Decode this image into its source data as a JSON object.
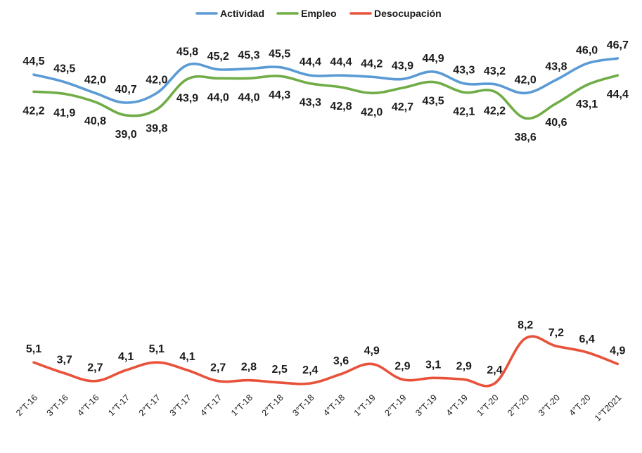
{
  "chart_data": {
    "type": "line",
    "title": "",
    "xlabel": "",
    "ylabel": "",
    "legend_position": "top-center",
    "grid": false,
    "categories": [
      "2°T-16",
      "3°T-16",
      "4°T-16",
      "1°T-17",
      "2°T-17",
      "3°T-17",
      "4°T-17",
      "1°T-18",
      "2°T-18",
      "3°T-18",
      "4°T-18",
      "1°T-19",
      "2°T-19",
      "3°T-19",
      "4°T-19",
      "1°T-20",
      "2°T-20",
      "3°T-20",
      "4°T-20",
      "1°T2021"
    ],
    "series": [
      {
        "name": "Actividad",
        "color": "#5B9BD5",
        "values": [
          44.5,
          43.5,
          42.0,
          40.7,
          42.0,
          45.8,
          45.2,
          45.3,
          45.5,
          44.4,
          44.4,
          44.2,
          43.9,
          44.9,
          43.3,
          43.2,
          42.0,
          43.8,
          46.0,
          46.7
        ],
        "labels": [
          "44,5",
          "43,5",
          "42,0",
          "40,7",
          "42,0",
          "45,8",
          "45,2",
          "45,3",
          "45,5",
          "44,4",
          "44,4",
          "44,2",
          "43,9",
          "44,9",
          "43,3",
          "43,2",
          "42,0",
          "43,8",
          "46,0",
          "46,7"
        ]
      },
      {
        "name": "Empleo",
        "color": "#70AD47",
        "values": [
          42.2,
          41.9,
          40.8,
          39.0,
          39.8,
          43.9,
          44.0,
          44.0,
          44.3,
          43.3,
          42.8,
          42.0,
          42.7,
          43.5,
          42.1,
          42.2,
          38.6,
          40.6,
          43.1,
          44.4
        ],
        "labels": [
          "42,2",
          "41,9",
          "40,8",
          "39,0",
          "39,8",
          "43,9",
          "44,0",
          "44,0",
          "44,3",
          "43,3",
          "42,8",
          "42,0",
          "42,7",
          "43,5",
          "42,1",
          "42,2",
          "38,6",
          "40,6",
          "43,1",
          "44,4"
        ]
      },
      {
        "name": "Desocupación",
        "color": "#E8523A",
        "values": [
          5.1,
          3.7,
          2.7,
          4.1,
          5.1,
          4.1,
          2.7,
          2.8,
          2.5,
          2.4,
          3.6,
          4.9,
          2.9,
          3.1,
          2.9,
          2.4,
          8.2,
          7.2,
          6.4,
          4.9
        ],
        "labels": [
          "5,1",
          "3,7",
          "2,7",
          "4,1",
          "5,1",
          "4,1",
          "2,7",
          "2,8",
          "2,5",
          "2,4",
          "3,6",
          "4,9",
          "2,9",
          "3,1",
          "2,9",
          "2,4",
          "8,2",
          "7,2",
          "6,4",
          "4,9"
        ]
      }
    ]
  }
}
